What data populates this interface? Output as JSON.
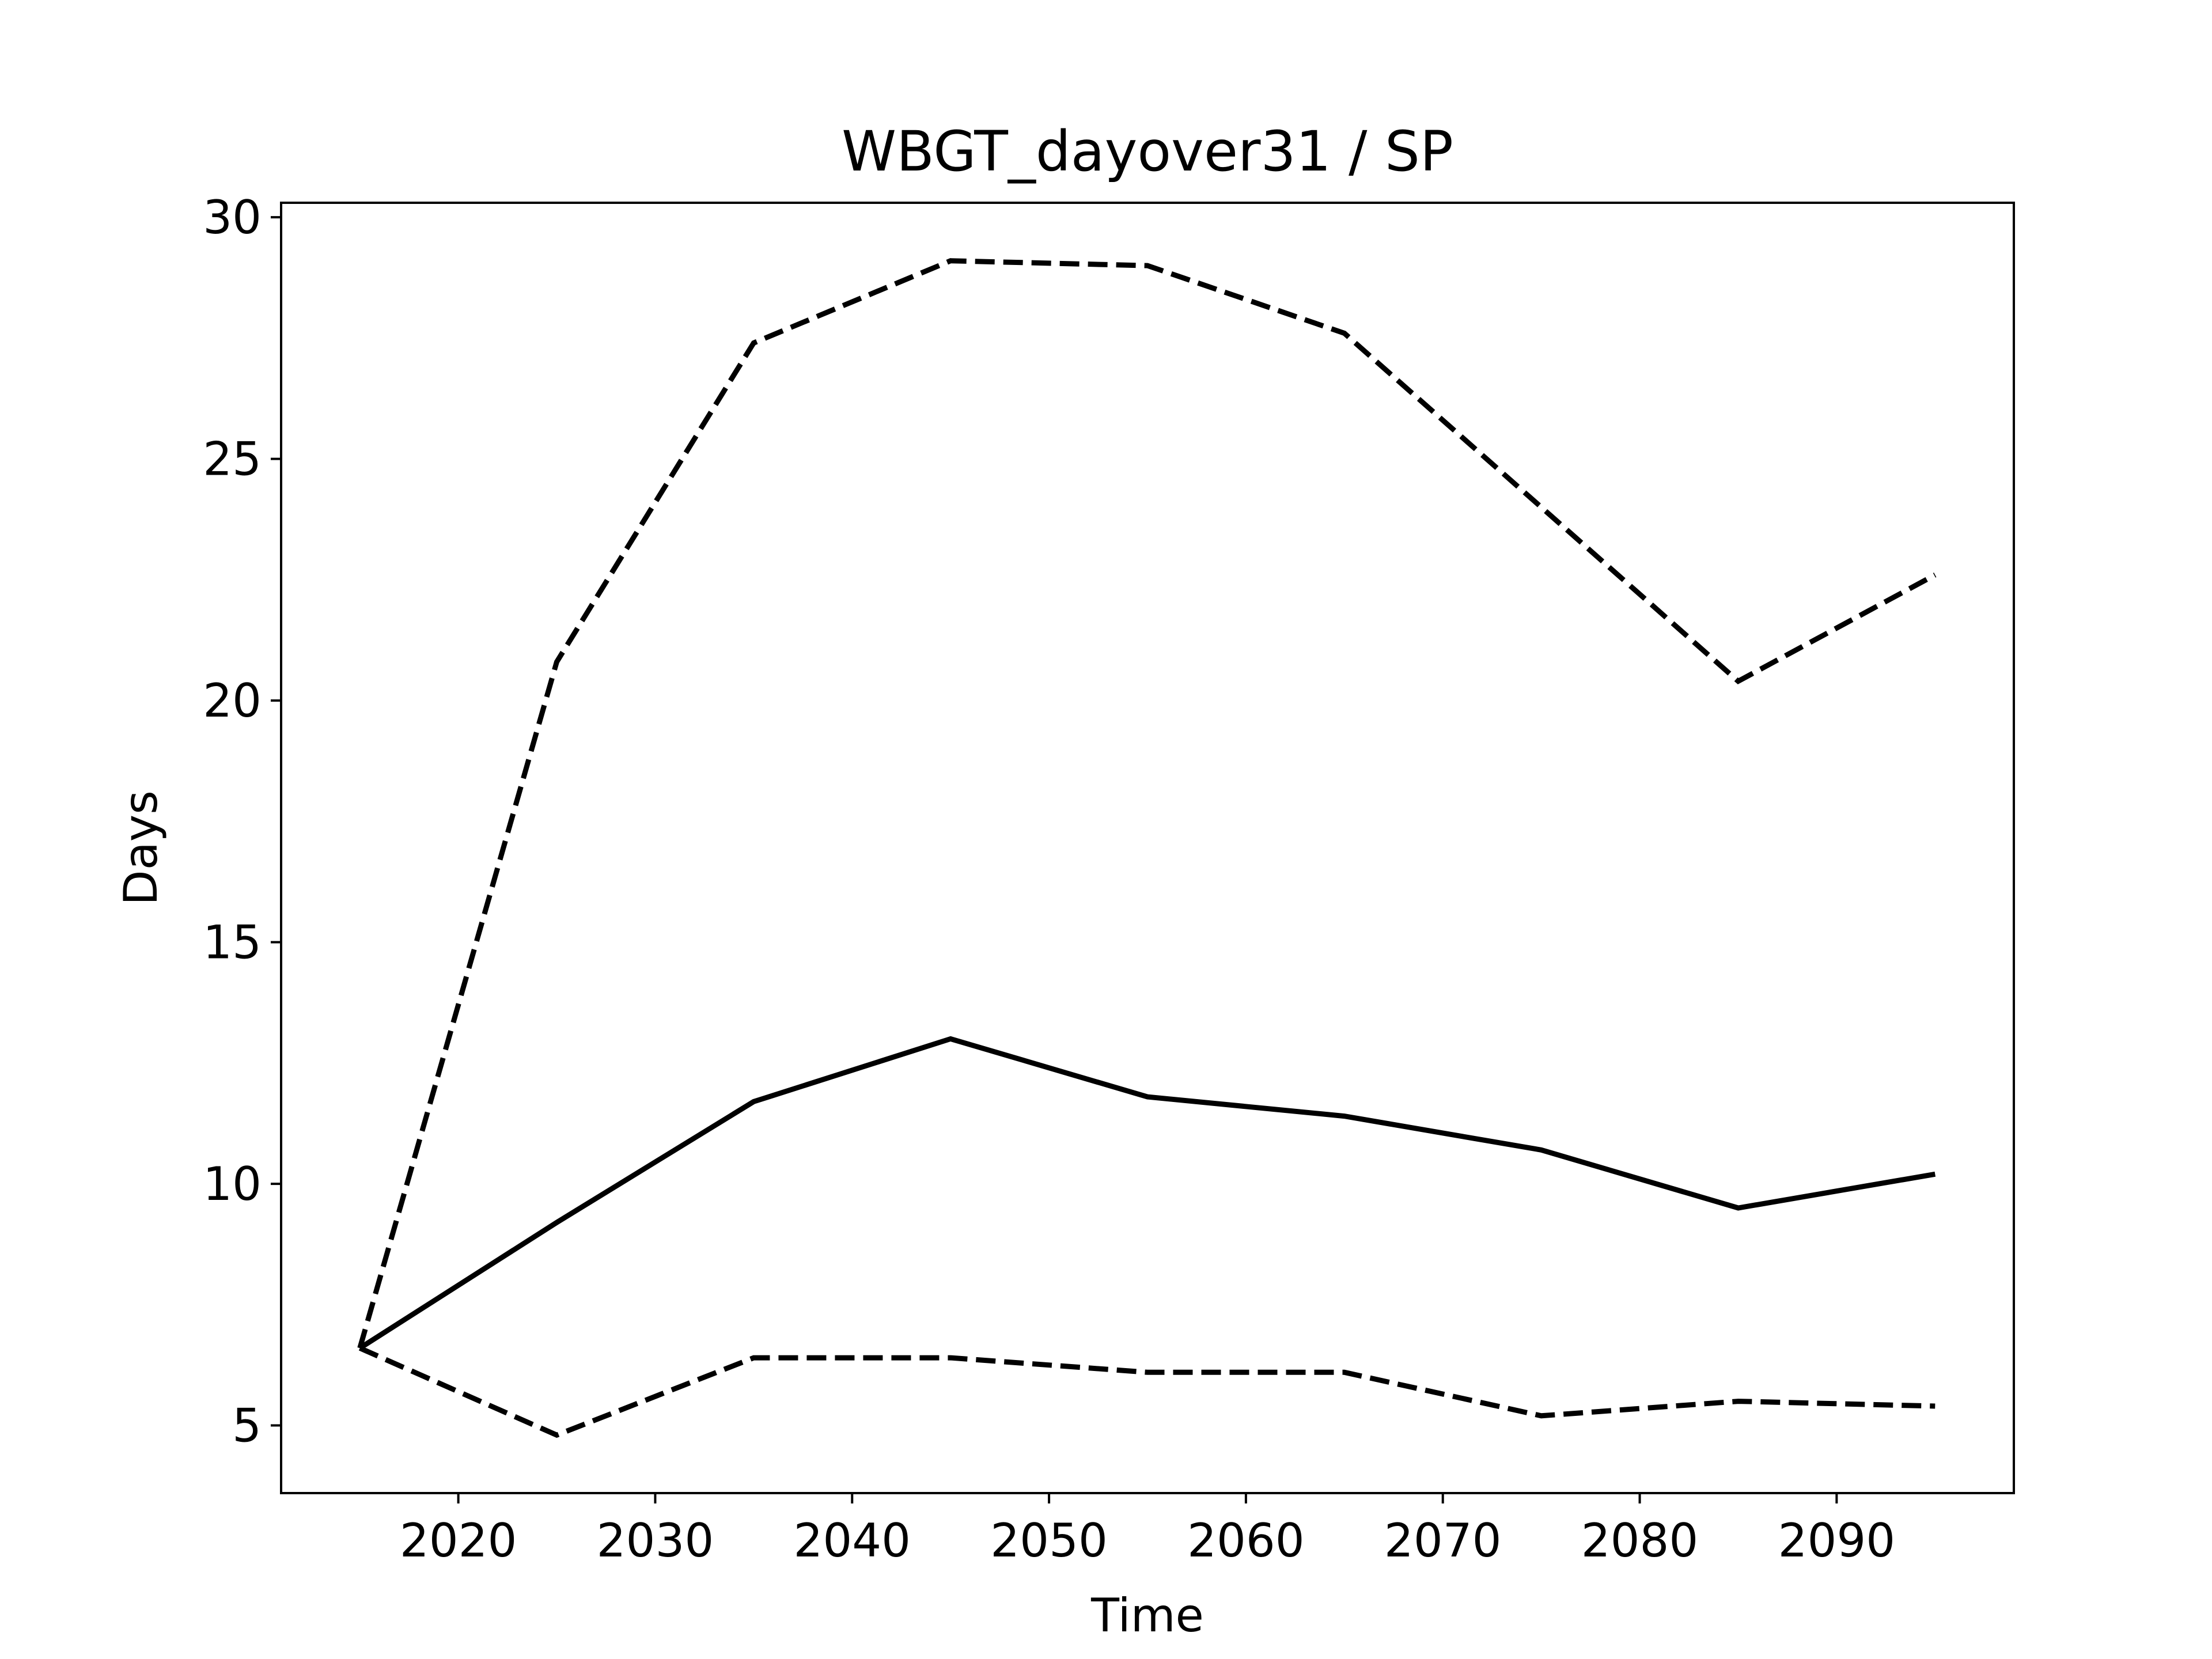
{
  "chart_data": {
    "type": "line",
    "title": "WBGT_dayover31 / SP",
    "xlabel": "Time",
    "ylabel": "Days",
    "xlim": [
      2011,
      2099
    ],
    "ylim": [
      3.6,
      30.3
    ],
    "x_ticks": [
      2020,
      2030,
      2040,
      2050,
      2060,
      2070,
      2080,
      2090
    ],
    "y_ticks": [
      5,
      10,
      15,
      20,
      25,
      30
    ],
    "x_tick_labels": [
      "2020",
      "2030",
      "2040",
      "2050",
      "2060",
      "2070",
      "2080",
      "2090"
    ],
    "y_tick_labels": [
      "5",
      "10",
      "15",
      "20",
      "25",
      "30"
    ],
    "grid": false,
    "legend": false,
    "x": [
      2015,
      2025,
      2035,
      2045,
      2055,
      2065,
      2075,
      2085,
      2095
    ],
    "series": [
      {
        "style": "dashed",
        "color": "#000000",
        "values": [
          6.6,
          20.8,
          27.4,
          29.1,
          29.0,
          27.6,
          24.0,
          20.4,
          22.6
        ]
      },
      {
        "style": "solid",
        "color": "#000000",
        "values": [
          6.6,
          9.2,
          11.7,
          13.0,
          11.8,
          11.4,
          10.7,
          9.5,
          10.2
        ]
      },
      {
        "style": "dashed",
        "color": "#000000",
        "values": [
          6.6,
          4.8,
          6.4,
          6.4,
          6.1,
          6.1,
          5.2,
          5.5,
          5.4
        ]
      }
    ]
  }
}
